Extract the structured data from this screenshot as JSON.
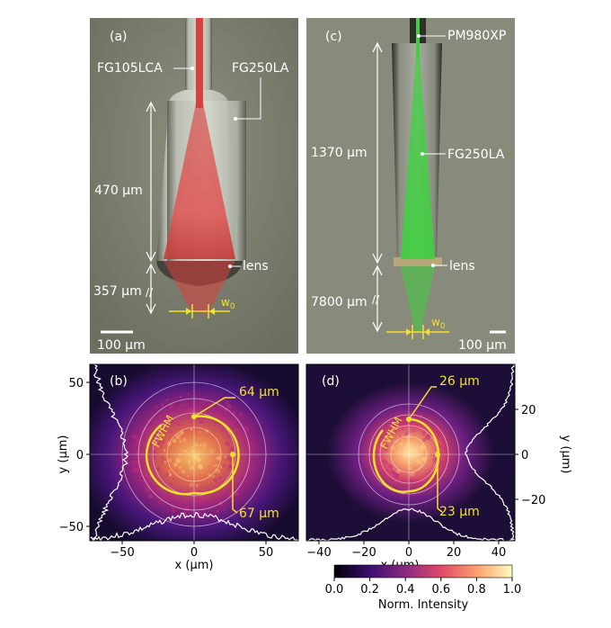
{
  "panels": {
    "a": {
      "tag": "(a)",
      "labels": {
        "fiber_top": "FG105LCA",
        "fiber_body": "FG250LA",
        "lens": "lens"
      },
      "dims": {
        "length": "470 µm",
        "gap": "357 µm"
      },
      "waist": "w0",
      "scalebar": "100 µm",
      "beam_color": "#d8403e"
    },
    "c": {
      "tag": "(c)",
      "labels": {
        "fiber_top": "PM980XP",
        "fiber_body": "FG250LA",
        "lens": "lens"
      },
      "dims": {
        "length": "1370 µm",
        "gap": "7800 µm"
      },
      "waist": "w0",
      "scalebar": "100 µm",
      "beam_color": "#3fd040"
    },
    "b": {
      "tag": "(b)",
      "fwhm": "FWHM",
      "annot_top": "64 µm",
      "annot_right": "67 µm"
    },
    "d": {
      "tag": "(d)",
      "fwhm": "FWHM",
      "annot_top": "26 µm",
      "annot_right": "23 µm"
    }
  },
  "axes": {
    "b": {
      "xlabel": "x (µm)",
      "ylabel": "y (µm)",
      "xticks": [
        "−50",
        "0",
        "50"
      ],
      "yticks": [
        "50",
        "0",
        "−50"
      ]
    },
    "d": {
      "xlabel": "x (µm)",
      "ylabel": "y (µm)",
      "xticks": [
        "−40",
        "−20",
        "0",
        "20",
        "40"
      ],
      "yticks": [
        "20",
        "0",
        "−20"
      ]
    }
  },
  "colorbar": {
    "label": "Norm. Intensity",
    "ticks": [
      "0.0",
      "0.2",
      "0.4",
      "0.6",
      "0.8",
      "1.0"
    ]
  },
  "colors": {
    "annotation": "#f2e12a",
    "photo_bg": "#7c7f6e",
    "heatmap_bg": "#150a2c"
  }
}
